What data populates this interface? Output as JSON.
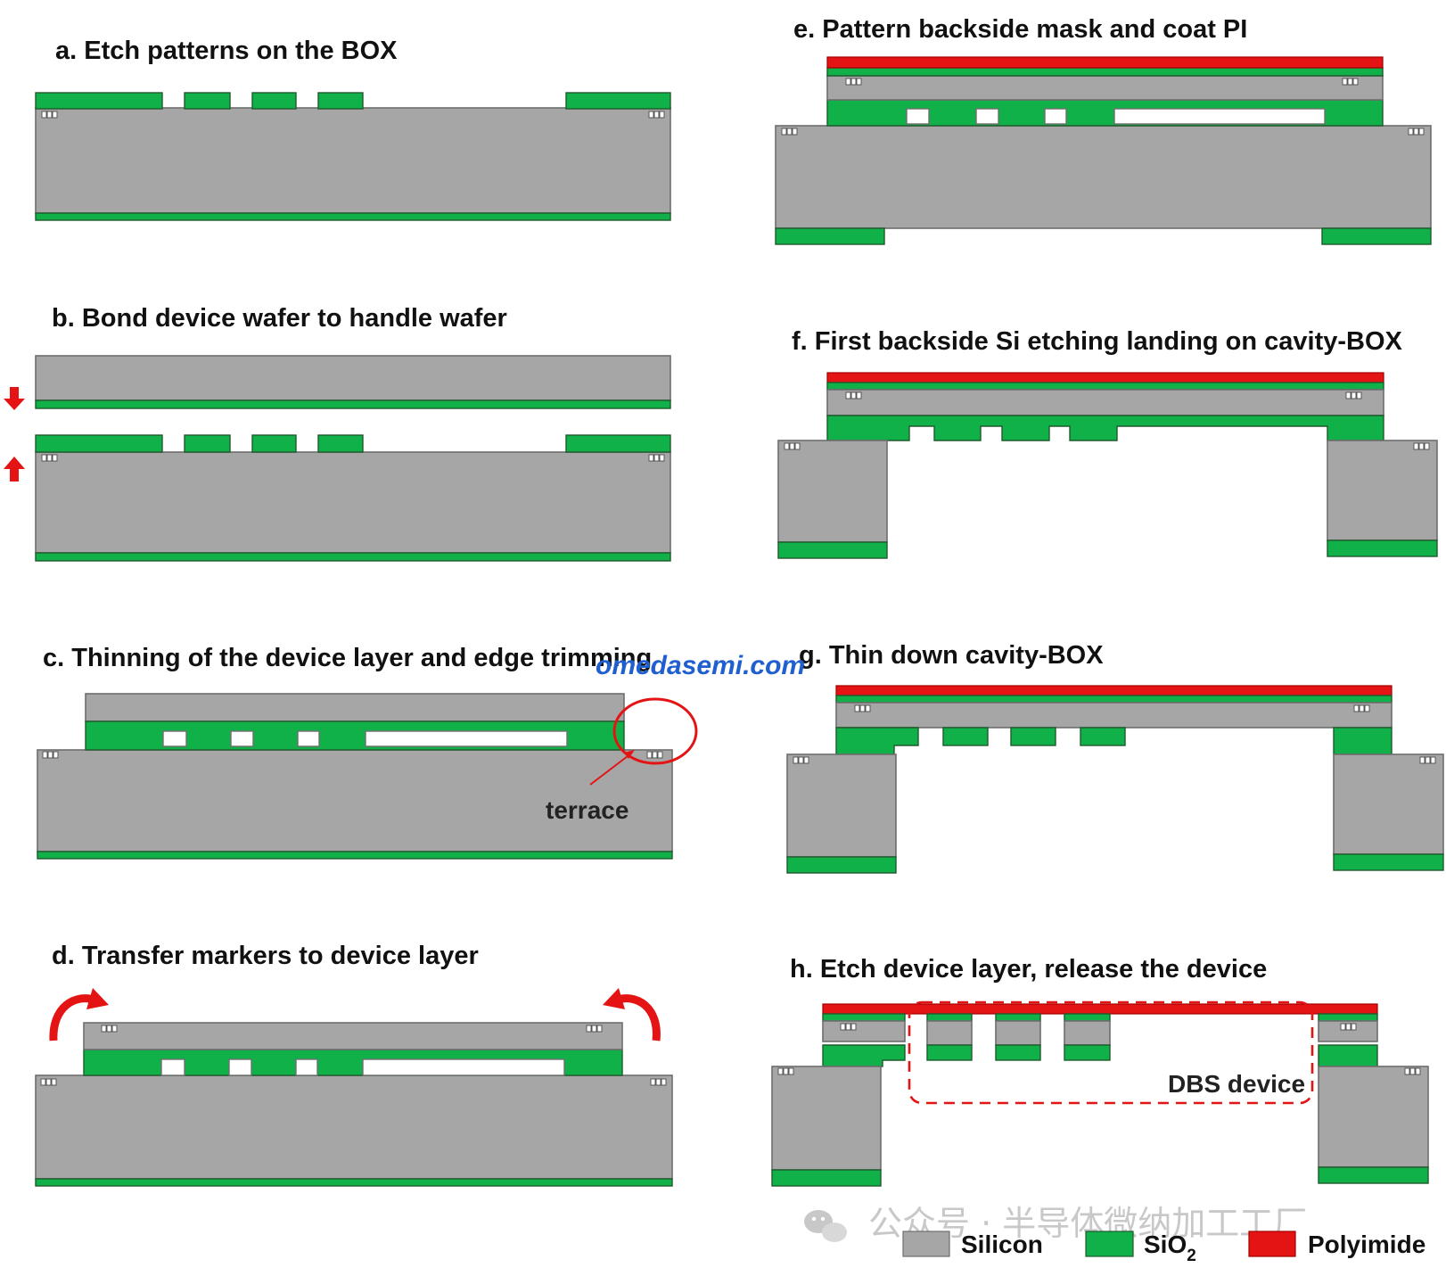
{
  "steps": {
    "a": "a. Etch patterns on the BOX",
    "b": "b. Bond device wafer to handle wafer",
    "c": "c. Thinning of the device layer and edge trimming",
    "d": "d. Transfer markers to device layer",
    "e": "e. Pattern backside mask and coat PI",
    "f": "f. First backside Si etching landing on cavity-BOX",
    "g": "g. Thin down cavity-BOX",
    "h": "h. Etch device layer, release the device"
  },
  "annotations": {
    "terrace": "terrace",
    "dbs_device": "DBS device"
  },
  "legend": {
    "silicon": "Silicon",
    "sio2_base": "SiO",
    "sio2_sub": "2",
    "polyimide": "Polyimide"
  },
  "watermark": {
    "url": "omedasemi.com",
    "account": "公众号 · 半导体微纳加工工厂"
  },
  "colors": {
    "silicon": "#a6a6a6",
    "sio2": "#10b148",
    "polyimide": "#e51414",
    "arrows": "#e51414",
    "url_watermark": "#1f5fcf"
  }
}
